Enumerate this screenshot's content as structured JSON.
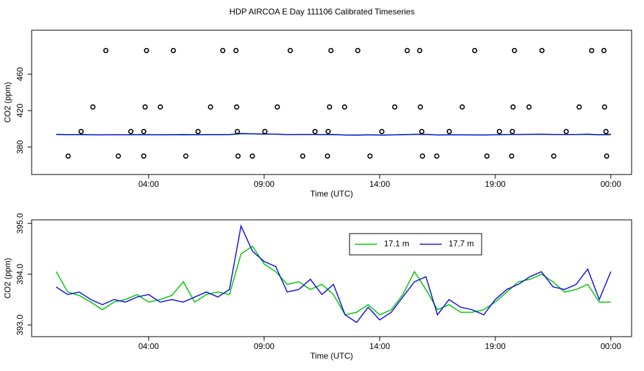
{
  "title": "HDP AIRCOA E  Day 111106  Calibrated Timeseries",
  "chart_data": [
    {
      "type": "scatter",
      "xlabel": "Time (UTC)",
      "ylabel": "CO2 (ppm)",
      "x": [
        2.15,
        3.91,
        5.07,
        7.21,
        7.78,
        10.13,
        11.89,
        13.05,
        15.19,
        15.73,
        18.11,
        19.83,
        21.02,
        23.17,
        23.7,
        1.59,
        3.85,
        4.51,
        6.68,
        7.81,
        9.57,
        11.83,
        12.48,
        14.65,
        15.76,
        17.57,
        19.77,
        20.46,
        22.63,
        23.73,
        1.08,
        3.23,
        3.79,
        6.14,
        7.84,
        9.03,
        11.2,
        11.77,
        14.09,
        15.82,
        17.01,
        19.18,
        19.74,
        22.07,
        23.79,
        0.52,
        2.69,
        3.79,
        5.61,
        7.87,
        8.49,
        10.67,
        11.74,
        13.58,
        15.85,
        16.47,
        18.64,
        19.71,
        21.53,
        23.82
      ],
      "values": [
        486,
        486,
        486,
        486,
        486,
        486,
        486,
        486,
        486,
        486,
        486,
        486,
        486,
        486,
        486,
        424,
        424,
        424,
        424,
        424,
        424,
        424,
        424,
        424,
        424,
        424,
        424,
        424,
        424,
        424,
        397,
        397,
        397,
        397,
        397,
        397,
        397,
        397,
        397,
        397,
        397,
        397,
        397,
        397,
        397,
        370,
        370,
        370,
        370,
        370,
        370,
        370,
        370,
        370,
        370,
        370,
        370,
        370,
        370,
        370
      ],
      "color": "#000000",
      "xlim": [
        -1.06,
        24.9
      ],
      "xticks": [
        {
          "value": 4,
          "label": "04:00"
        },
        {
          "value": 9,
          "label": "09:00"
        },
        {
          "value": 14,
          "label": "14:00"
        },
        {
          "value": 19,
          "label": "19:00"
        },
        {
          "value": 24,
          "label": "00:00"
        }
      ],
      "ylim": [
        349.8,
        508.3
      ],
      "yticks": [
        380,
        420,
        460
      ]
    },
    {
      "type": "line",
      "xlabel": "Time (UTC)",
      "ylabel": "CO2 (ppm)",
      "x": [
        0,
        0.5,
        1,
        1.5,
        2,
        2.5,
        3,
        3.5,
        4,
        4.5,
        5,
        5.5,
        6,
        6.5,
        7,
        7.5,
        8,
        8.5,
        9,
        9.5,
        10,
        10.5,
        11,
        11.5,
        12,
        12.5,
        13,
        13.5,
        14,
        14.5,
        15,
        15.5,
        16,
        16.5,
        17,
        17.5,
        18,
        18.5,
        19,
        19.5,
        20,
        20.5,
        21,
        21.5,
        22,
        22.5,
        23,
        23.5,
        24
      ],
      "series": [
        {
          "name": "17.1 m",
          "color": "#00c800",
          "values": [
            394.05,
            393.65,
            393.58,
            393.45,
            393.3,
            393.45,
            393.5,
            393.6,
            393.45,
            393.5,
            393.58,
            393.85,
            393.45,
            393.6,
            393.65,
            393.6,
            394.4,
            394.55,
            394.2,
            394.05,
            393.8,
            393.85,
            393.7,
            393.8,
            393.6,
            393.2,
            393.25,
            393.4,
            393.2,
            393.3,
            393.6,
            394.05,
            393.7,
            393.3,
            393.4,
            393.25,
            393.25,
            393.3,
            393.45,
            393.65,
            393.85,
            393.9,
            394.0,
            393.85,
            393.65,
            393.7,
            393.8,
            393.45,
            393.45
          ]
        },
        {
          "name": "17.7 m",
          "color": "#1010e6",
          "values": [
            393.75,
            393.6,
            393.65,
            393.5,
            393.4,
            393.5,
            393.45,
            393.55,
            393.6,
            393.45,
            393.5,
            393.45,
            393.55,
            393.65,
            393.55,
            393.7,
            394.95,
            394.45,
            394.25,
            394.15,
            393.65,
            393.7,
            393.9,
            393.6,
            393.8,
            393.2,
            393.05,
            393.35,
            393.1,
            393.25,
            393.55,
            393.85,
            393.95,
            393.2,
            393.5,
            393.35,
            393.3,
            393.2,
            393.5,
            393.7,
            393.8,
            393.95,
            394.05,
            393.75,
            393.7,
            393.8,
            394.1,
            393.5,
            394.05
          ]
        }
      ],
      "xlim": [
        -1.06,
        24.9
      ],
      "xticks": [
        {
          "value": 4,
          "label": "04:00"
        },
        {
          "value": 9,
          "label": "09:00"
        },
        {
          "value": 14,
          "label": "14:00"
        },
        {
          "value": 19,
          "label": "19:00"
        },
        {
          "value": 24,
          "label": "00:00"
        }
      ],
      "ylim": [
        392.77,
        395.07
      ],
      "yticks": [
        {
          "value": 393,
          "label": "393.0"
        },
        {
          "value": 394,
          "label": "394.0"
        },
        {
          "value": 395,
          "label": "395.0"
        }
      ],
      "legend": "top"
    }
  ]
}
